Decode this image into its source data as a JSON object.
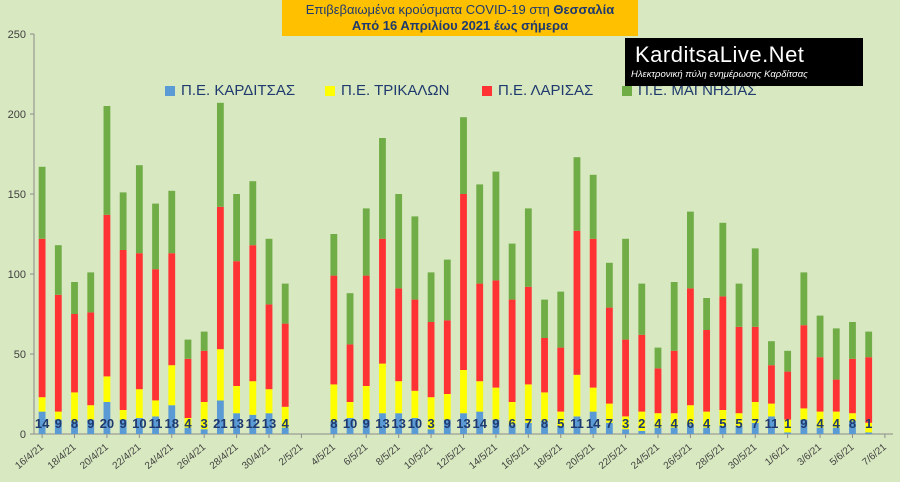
{
  "title": {
    "line1_prefix": "Επιβεβαιωμένα κρούσματα COVID-19 στη ",
    "line1_highlight": "Θεσσαλία",
    "line2": "Από 16 Απριλίου 2021 έως σήμερα"
  },
  "logo": {
    "name": "KarditsaLive.Net",
    "tagline": "Ηλεκτρονική πύλη ενημέρωσης Καρδίτσας"
  },
  "colors": {
    "background": "#d8e8c0",
    "kardits": "#5b9bd5",
    "trikala": "#ffff00",
    "larisa": "#ff3333",
    "magnisia": "#70ad47",
    "label_text": "#1f3a6e"
  },
  "chart_data": {
    "type": "bar",
    "stacked": true,
    "ylim": [
      0,
      250
    ],
    "yticks": [
      0,
      50,
      100,
      150,
      200,
      250
    ],
    "grid": false,
    "legend_position": "top",
    "x_tick_labels": [
      "16/4/21",
      "18/4/21",
      "20/4/21",
      "22/4/21",
      "24/4/21",
      "26/4/21",
      "28/4/21",
      "30/4/21",
      "2/5/21",
      "4/5/21",
      "6/5/21",
      "8/5/21",
      "10/5/21",
      "12/5/21",
      "14/5/21",
      "16/5/21",
      "18/5/21",
      "20/5/21",
      "22/5/21",
      "24/5/21",
      "26/5/21",
      "28/5/21",
      "30/5/21",
      "1/6/21",
      "3/6/21",
      "5/6/21",
      "7/6/21"
    ],
    "categories": [
      "16/4/21",
      "17/4/21",
      "18/4/21",
      "19/4/21",
      "20/4/21",
      "21/4/21",
      "22/4/21",
      "23/4/21",
      "24/4/21",
      "25/4/21",
      "26/4/21",
      "27/4/21",
      "28/4/21",
      "29/4/21",
      "30/4/21",
      "1/5/21",
      "2/5/21",
      "3/5/21",
      "4/5/21",
      "5/5/21",
      "6/5/21",
      "7/5/21",
      "8/5/21",
      "9/5/21",
      "10/5/21",
      "11/5/21",
      "12/5/21",
      "13/5/21",
      "14/5/21",
      "15/5/21",
      "16/5/21",
      "17/5/21",
      "18/5/21",
      "19/5/21",
      "20/5/21",
      "21/5/21",
      "22/5/21",
      "23/5/21",
      "24/5/21",
      "25/5/21",
      "26/5/21",
      "27/5/21",
      "28/5/21",
      "29/5/21",
      "30/5/21",
      "31/5/21",
      "1/6/21",
      "2/6/21",
      "3/6/21",
      "4/6/21",
      "5/6/21",
      "6/6/21",
      "7/6/21"
    ],
    "series": [
      {
        "name": "Π.Ε. ΚΑΡΔΙΤΣΑΣ",
        "color": "#5b9bd5",
        "values": [
          14,
          9,
          8,
          9,
          20,
          9,
          10,
          11,
          18,
          4,
          3,
          21,
          13,
          12,
          13,
          4,
          null,
          null,
          8,
          10,
          9,
          13,
          13,
          10,
          3,
          9,
          13,
          14,
          9,
          6,
          7,
          8,
          5,
          11,
          14,
          7,
          3,
          2,
          4,
          4,
          6,
          4,
          5,
          5,
          7,
          11,
          1,
          9,
          4,
          4,
          8,
          1,
          null
        ]
      },
      {
        "name": "Π.Ε. ΤΡΙΚΑΛΩΝ",
        "color": "#ffff00",
        "values": [
          9,
          5,
          18,
          9,
          16,
          6,
          18,
          10,
          25,
          6,
          17,
          32,
          17,
          21,
          15,
          13,
          null,
          null,
          23,
          10,
          21,
          31,
          20,
          17,
          20,
          16,
          27,
          19,
          20,
          14,
          24,
          18,
          9,
          26,
          15,
          12,
          8,
          12,
          9,
          9,
          12,
          10,
          10,
          8,
          13,
          8,
          8,
          7,
          10,
          10,
          5,
          6,
          null
        ]
      },
      {
        "name": "Π.Ε. ΛΑΡΙΣΑΣ",
        "color": "#ff3333",
        "values": [
          99,
          73,
          49,
          58,
          101,
          100,
          85,
          82,
          70,
          37,
          32,
          89,
          78,
          85,
          53,
          52,
          null,
          null,
          68,
          36,
          69,
          78,
          58,
          57,
          47,
          46,
          110,
          61,
          67,
          64,
          61,
          34,
          40,
          90,
          93,
          60,
          48,
          48,
          28,
          39,
          73,
          51,
          71,
          54,
          47,
          24,
          30,
          52,
          34,
          20,
          34,
          41,
          null
        ]
      },
      {
        "name": "Π.Ε. ΜΑΓΝΗΣΙΑΣ",
        "color": "#70ad47",
        "values": [
          45,
          31,
          20,
          25,
          68,
          36,
          55,
          41,
          39,
          12,
          12,
          65,
          42,
          40,
          41,
          25,
          null,
          null,
          26,
          32,
          42,
          63,
          59,
          52,
          31,
          38,
          48,
          62,
          68,
          35,
          49,
          24,
          35,
          46,
          40,
          28,
          63,
          32,
          13,
          43,
          48,
          20,
          46,
          27,
          49,
          15,
          13,
          33,
          26,
          32,
          23,
          16,
          null
        ]
      }
    ],
    "bar_labels": [
      14,
      9,
      8,
      9,
      20,
      9,
      10,
      11,
      18,
      4,
      3,
      21,
      13,
      12,
      13,
      4,
      null,
      null,
      8,
      10,
      9,
      13,
      13,
      10,
      3,
      9,
      13,
      14,
      9,
      6,
      7,
      8,
      5,
      11,
      14,
      7,
      3,
      2,
      4,
      4,
      6,
      4,
      5,
      5,
      7,
      11,
      1,
      9,
      4,
      4,
      8,
      1,
      null
    ]
  }
}
